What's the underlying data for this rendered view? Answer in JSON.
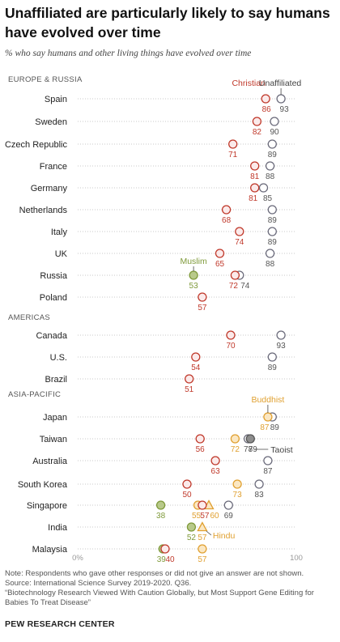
{
  "title": "Unaffiliated are particularly likely to say humans have evolved over time",
  "subtitle": "% who say humans and other living things have evolved over time",
  "colors": {
    "Christian": "#c0392b",
    "Unaffiliated": "#6b6b7b",
    "Muslim": "#7f9a3a",
    "Buddhist": "#e0a030",
    "Taoist": "#555555",
    "Hindu": "#e0a030"
  },
  "chart_data": {
    "type": "dot",
    "xlim": [
      0,
      100
    ],
    "x_tick_labels": [
      "0%",
      "100"
    ],
    "legend_labels": [
      {
        "text": "Christian",
        "series": "Christian"
      },
      {
        "text": "Unaffiliated",
        "series": "Unaffiliated"
      },
      {
        "text": "Muslim",
        "series": "Muslim"
      },
      {
        "text": "Buddhist",
        "series": "Buddhist"
      },
      {
        "text": "Taoist",
        "series": "Taoist"
      },
      {
        "text": "Hindu",
        "series": "Hindu"
      }
    ],
    "regions": [
      {
        "name": "EUROPE & RUSSIA",
        "countries": [
          {
            "name": "Spain",
            "values": {
              "Christian": 86,
              "Unaffiliated": 93
            }
          },
          {
            "name": "Sweden",
            "values": {
              "Christian": 82,
              "Unaffiliated": 90
            }
          },
          {
            "name": "Czech Republic",
            "values": {
              "Christian": 71,
              "Unaffiliated": 89
            }
          },
          {
            "name": "France",
            "values": {
              "Christian": 81,
              "Unaffiliated": 88
            }
          },
          {
            "name": "Germany",
            "values": {
              "Christian": 81,
              "Unaffiliated": 85
            }
          },
          {
            "name": "Netherlands",
            "values": {
              "Christian": 68,
              "Unaffiliated": 89
            }
          },
          {
            "name": "Italy",
            "values": {
              "Christian": 74,
              "Unaffiliated": 89
            }
          },
          {
            "name": "UK",
            "values": {
              "Christian": 65,
              "Unaffiliated": 88
            }
          },
          {
            "name": "Russia",
            "values": {
              "Muslim": 53,
              "Christian": 72,
              "Unaffiliated": 74
            }
          },
          {
            "name": "Poland",
            "values": {
              "Christian": 57
            }
          }
        ]
      },
      {
        "name": "AMERICAS",
        "countries": [
          {
            "name": "Canada",
            "values": {
              "Christian": 70,
              "Unaffiliated": 93
            }
          },
          {
            "name": "U.S.",
            "values": {
              "Christian": 54,
              "Unaffiliated": 89
            }
          },
          {
            "name": "Brazil",
            "values": {
              "Christian": 51
            }
          }
        ]
      },
      {
        "name": "ASIA-PACIFIC",
        "countries": [
          {
            "name": "Japan",
            "values": {
              "Buddhist": 87,
              "Unaffiliated": 89
            }
          },
          {
            "name": "Taiwan",
            "values": {
              "Christian": 56,
              "Buddhist": 72,
              "Unaffiliated": 78,
              "Taoist": 79
            }
          },
          {
            "name": "Australia",
            "values": {
              "Christian": 63,
              "Unaffiliated": 87
            }
          },
          {
            "name": "South Korea",
            "values": {
              "Christian": 50,
              "Buddhist": 73,
              "Unaffiliated": 83
            }
          },
          {
            "name": "Singapore",
            "values": {
              "Muslim": 38,
              "Buddhist": 55,
              "Christian": 57,
              "Hindu": 60,
              "Unaffiliated": 69
            }
          },
          {
            "name": "India",
            "values": {
              "Muslim": 52,
              "Hindu": 57
            }
          },
          {
            "name": "Malaysia",
            "values": {
              "Muslim": 39,
              "Christian": 40,
              "Buddhist": 57
            }
          }
        ]
      }
    ]
  },
  "notes": [
    "Note: Respondents who gave other responses or did not give an answer are not shown.",
    "Source: International Science Survey 2019-2020. Q36.",
    "“Biotechnology Research Viewed With Caution Globally, but Most Support Gene Editing for Babies To Treat Disease”"
  ],
  "brand": "PEW RESEARCH CENTER"
}
